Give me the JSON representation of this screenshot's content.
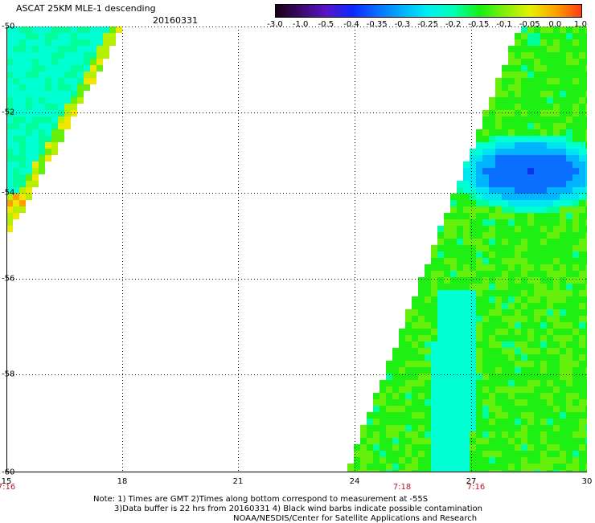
{
  "header": {
    "title": "ASCAT 25KM MLE-1 descending",
    "date": "20160331"
  },
  "colorbar": {
    "labels": [
      "-3.0",
      "-1.0",
      "-0.5",
      "-0.4",
      "-0.35",
      "-0.3",
      "-0.25",
      "-0.2",
      "-0.15",
      "-0.1",
      "-0.05",
      "0.0",
      "1.0"
    ],
    "colors": [
      "#1a0012",
      "#3c0a6e",
      "#5a14c8",
      "#0a28ff",
      "#0a6eff",
      "#00b4ff",
      "#00f0f0",
      "#00ffb4",
      "#14f014",
      "#82f00a",
      "#e6f000",
      "#ffa000",
      "#ff3c14"
    ]
  },
  "axes": {
    "y_labels": [
      "-50",
      "-52",
      "-54",
      "-56",
      "-58",
      "-60"
    ],
    "x_labels": [
      "15",
      "18",
      "21",
      "24",
      "27",
      "30"
    ],
    "time_labels": [
      "7:16",
      "7:18",
      "7:16"
    ]
  },
  "notes": {
    "line1": "Note: 1) Times are GMT 2)Times along bottom correspond to measurement at -55S",
    "line2": "3)Data buffer is 22 hrs from 20160331 4) Black wind barbs indicate possible contamination",
    "line3": "NOAA/NESDIS/Center for Satellite Applications and Research"
  }
}
